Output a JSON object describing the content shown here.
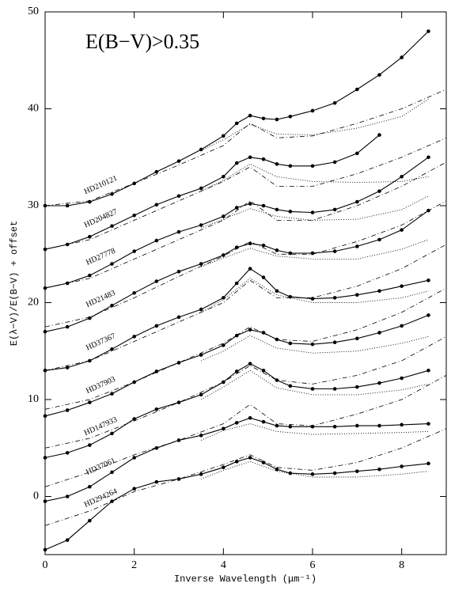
{
  "chart_data": {
    "type": "line",
    "annotation": "E(B−V)>0.35",
    "xlabel": "Inverse Wavelength (μm⁻¹)",
    "ylabel": "E(λ−V)/E(B−V) + offset",
    "xlim": [
      0,
      9
    ],
    "ylim": [
      -6,
      50
    ],
    "xticks": [
      0,
      2,
      4,
      6,
      8
    ],
    "yticks": [
      0,
      10,
      20,
      30,
      40,
      50
    ],
    "color": "#000000",
    "x": [
      0,
      0.5,
      1,
      1.5,
      2,
      2.5,
      3,
      3.5,
      4,
      4.3,
      4.6,
      4.9,
      5.2,
      5.5,
      6,
      6.5,
      7,
      7.5,
      8,
      8.6
    ],
    "ccm_x": [
      0,
      1,
      2,
      3,
      4,
      4.6,
      5.2,
      6,
      7,
      8,
      9
    ],
    "dotted_x": [
      3.5,
      4,
      4.6,
      5.2,
      6,
      7,
      8,
      8.6
    ],
    "series": [
      {
        "name": "HD210121",
        "values": [
          30,
          30,
          30.4,
          31.2,
          32.3,
          33.5,
          34.6,
          35.8,
          37.2,
          38.5,
          39.3,
          39,
          38.9,
          39.2,
          39.8,
          40.6,
          42,
          43.5,
          45.3,
          48
        ],
        "ccm_values": [
          30,
          30.5,
          32.3,
          34.2,
          36.2,
          38.5,
          37,
          37.2,
          38.5,
          40,
          42
        ],
        "dotted_values": [
          35.7,
          36.8,
          38.4,
          37.4,
          37.3,
          38,
          39.2,
          41
        ]
      },
      {
        "name": "HD204827",
        "values": [
          25.5,
          26,
          26.8,
          27.9,
          29,
          30.1,
          31,
          31.8,
          33,
          34.4,
          35,
          34.8,
          34.3,
          34.1,
          34.1,
          34.5,
          35.4,
          37.3,
          null,
          null
        ],
        "ccm_values": [
          25.5,
          26.5,
          28.5,
          30.5,
          32.5,
          34,
          32,
          32,
          33.3,
          35,
          37
        ],
        "dotted_values": [
          31.5,
          32.6,
          34.3,
          33,
          32.5,
          32.4,
          32.5,
          33
        ]
      },
      {
        "name": "HD27778",
        "values": [
          21.5,
          22,
          22.8,
          24,
          25.3,
          26.4,
          27.3,
          28,
          28.9,
          29.8,
          30.2,
          30,
          29.6,
          29.4,
          29.3,
          29.6,
          30.4,
          31.5,
          33,
          35
        ],
        "ccm_values": [
          21.5,
          22.5,
          24.5,
          26.5,
          28.5,
          30.5,
          28.5,
          28.5,
          30,
          32,
          34.5
        ],
        "dotted_values": [
          27.7,
          28.6,
          29.7,
          28.9,
          28.5,
          28.6,
          29.6,
          31
        ]
      },
      {
        "name": "HD21483",
        "values": [
          17,
          17.5,
          18.4,
          19.7,
          21,
          22.2,
          23.2,
          24,
          24.9,
          25.7,
          26.1,
          25.9,
          25.4,
          25.1,
          25.1,
          25.3,
          25.8,
          26.5,
          27.5,
          29.5
        ],
        "ccm_values": [
          17.5,
          18.5,
          20.5,
          22.7,
          24.8,
          26.3,
          25,
          25,
          26.3,
          28,
          30.5
        ],
        "dotted_values": [
          23.7,
          24.6,
          25.6,
          24.8,
          24.5,
          24.5,
          25.5,
          26.5
        ]
      },
      {
        "name": "HD37367",
        "values": [
          13,
          13.3,
          14,
          15.2,
          16.5,
          17.6,
          18.5,
          19.3,
          20.5,
          22,
          23.5,
          22.6,
          21.2,
          20.6,
          20.4,
          20.5,
          20.8,
          21.2,
          21.7,
          22.3
        ],
        "ccm_values": [
          13,
          14,
          16,
          18,
          20,
          22.3,
          20.5,
          20.5,
          21.7,
          23.5,
          26
        ],
        "dotted_values": [
          19,
          20.3,
          22.5,
          20.8,
          20,
          20,
          20.5,
          21.2
        ]
      },
      {
        "name": "HD37903",
        "values": [
          8.3,
          8.9,
          9.7,
          10.6,
          11.8,
          12.9,
          13.8,
          14.6,
          15.6,
          16.6,
          17.2,
          16.9,
          16.2,
          15.8,
          15.7,
          15.9,
          16.3,
          16.9,
          17.6,
          18.7
        ],
        "ccm_values": [
          9,
          10,
          11.8,
          13.8,
          15.8,
          17.5,
          16.2,
          16,
          17.2,
          19,
          21.5
        ],
        "dotted_values": [
          14,
          15,
          16.6,
          15.3,
          14.8,
          15,
          15.8,
          16.5
        ]
      },
      {
        "name": "HD147933",
        "values": [
          4,
          4.5,
          5.3,
          6.5,
          8,
          9,
          9.7,
          10.5,
          11.8,
          12.9,
          13.7,
          13,
          12,
          11.4,
          11.1,
          11.1,
          11.3,
          11.7,
          12.2,
          13
        ],
        "ccm_values": [
          5,
          6,
          7.8,
          9.7,
          11.8,
          13.5,
          12,
          11.6,
          12.5,
          14,
          16.5
        ],
        "dotted_values": [
          10,
          11.3,
          13,
          11.2,
          10.5,
          10.5,
          11,
          11.6
        ]
      },
      {
        "name": "HD37061",
        "values": [
          -0.5,
          0,
          1,
          2.5,
          4,
          5,
          5.8,
          6.3,
          7,
          7.6,
          8.1,
          7.7,
          7.3,
          7.2,
          7.2,
          7.2,
          7.3,
          7.3,
          7.4,
          7.5
        ],
        "ccm_values": [
          1,
          2.5,
          4.3,
          5.8,
          7.5,
          9.5,
          7.5,
          7.3,
          8.5,
          10,
          12.5
        ],
        "dotted_values": [
          5.8,
          6.8,
          7.5,
          6.7,
          6.4,
          6.5,
          6.6,
          6.7
        ]
      },
      {
        "name": "HD294264",
        "values": [
          -5.5,
          -4.5,
          -2.5,
          -0.5,
          0.8,
          1.5,
          1.8,
          2.3,
          3,
          3.6,
          4,
          3.5,
          2.8,
          2.4,
          2.3,
          2.4,
          2.6,
          2.8,
          3.1,
          3.4
        ],
        "ccm_values": [
          -3,
          -1.5,
          0.5,
          1.8,
          3.3,
          4.3,
          3,
          2.7,
          3.5,
          5,
          7
        ],
        "dotted_values": [
          1.8,
          2.7,
          3.6,
          2.6,
          2,
          2,
          2.3,
          2.6
        ]
      }
    ]
  }
}
